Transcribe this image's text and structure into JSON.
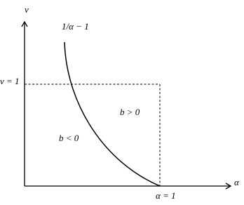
{
  "axes": {
    "y_label": "v",
    "x_label": "α"
  },
  "curve": {
    "label": "1/α − 1"
  },
  "ticks": {
    "v": "v = 1",
    "alpha": "α = 1"
  },
  "regions": [
    {
      "label": "b > 0"
    },
    {
      "label": "b < 0"
    }
  ]
}
